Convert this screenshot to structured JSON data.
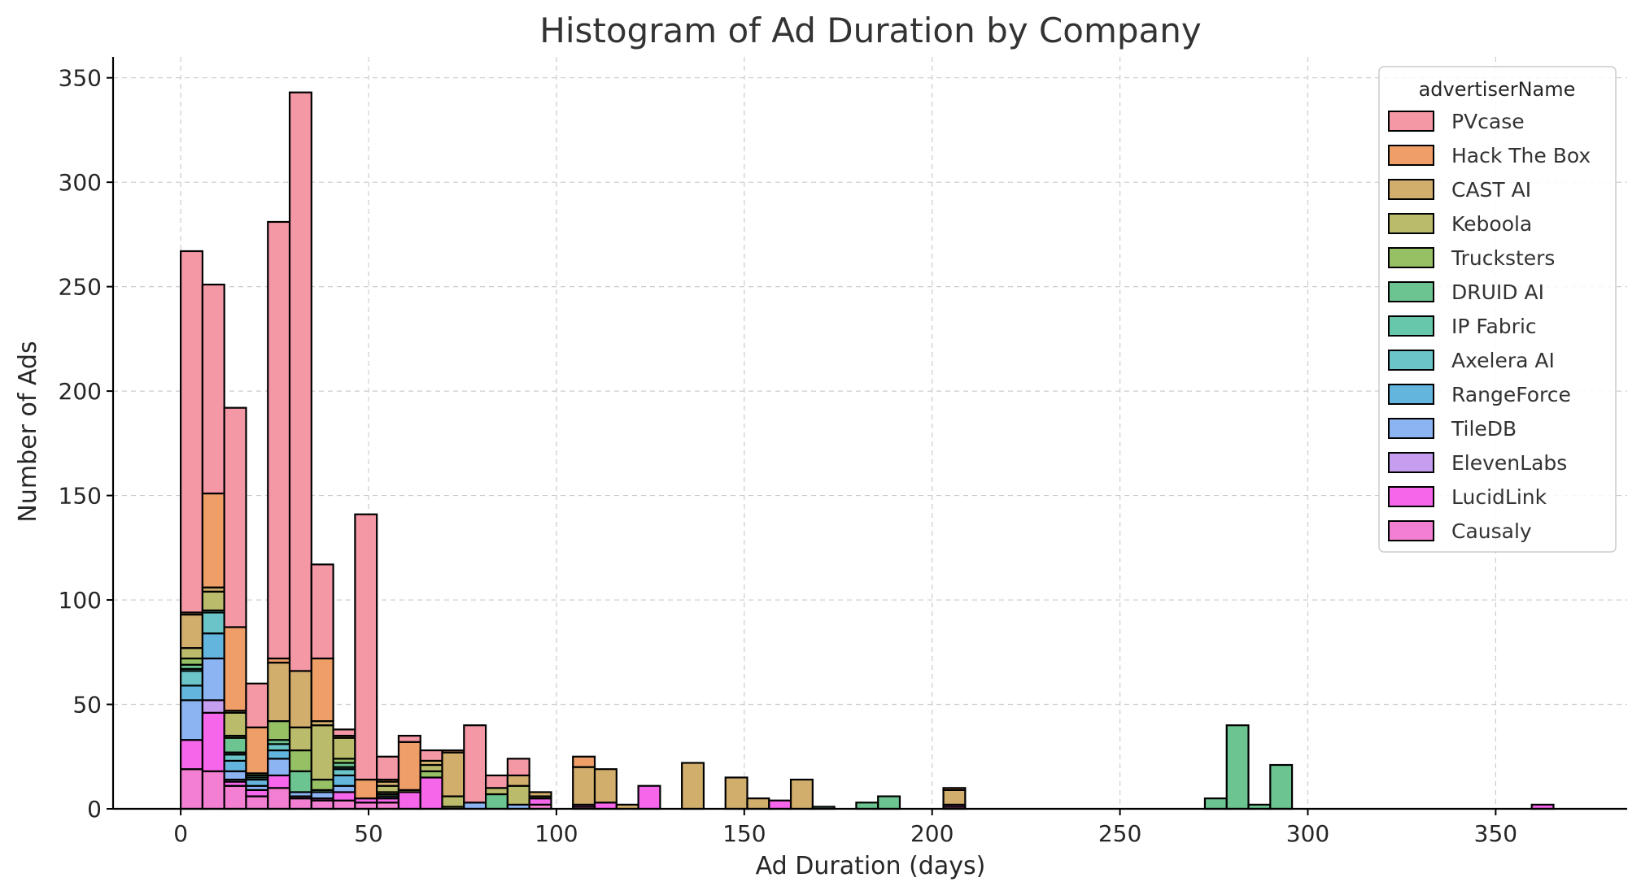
{
  "chart_data": {
    "type": "bar",
    "subtype": "stacked-histogram",
    "title": "Histogram of Ad Duration by Company",
    "xlabel": "Ad Duration (days)",
    "ylabel": "Number of Ads",
    "xlim": [
      -18,
      385
    ],
    "ylim": [
      0,
      360
    ],
    "xticks": [
      0,
      50,
      100,
      150,
      200,
      250,
      300,
      350
    ],
    "yticks": [
      0,
      50,
      100,
      150,
      200,
      250,
      300,
      350
    ],
    "grid": true,
    "legend_title": "advertiserName",
    "legend_position": "top-right",
    "bin_width": 5.8,
    "bins": [
      0,
      5.8,
      11.6,
      17.4,
      23.2,
      29.0,
      34.8,
      40.6,
      46.4,
      52.2,
      58.0,
      63.8,
      69.6,
      75.4,
      81.2,
      87.0,
      92.8,
      104.4,
      110.2,
      116.0,
      121.8,
      133.4,
      145.0,
      150.8,
      156.6,
      162.4,
      168.2,
      179.8,
      185.6,
      203.0,
      272.6,
      278.4,
      284.2,
      290.0,
      359.6
    ],
    "series": [
      {
        "name": "Causaly",
        "color": "#f27fd1",
        "values": [
          19,
          18,
          11,
          6,
          10,
          5,
          4,
          4,
          3,
          3,
          0,
          0,
          0,
          0,
          0,
          0,
          2,
          1,
          0,
          0,
          0,
          0,
          0,
          0,
          0,
          0,
          0,
          0,
          0,
          1,
          0,
          0,
          0,
          0,
          0
        ]
      },
      {
        "name": "LucidLink",
        "color": "#f566ea",
        "values": [
          14,
          28,
          2,
          3,
          6,
          1,
          1,
          4,
          2,
          2,
          8,
          15,
          0,
          0,
          0,
          0,
          3,
          1,
          3,
          0,
          11,
          0,
          0,
          0,
          4,
          0,
          0,
          0,
          0,
          1,
          0,
          0,
          0,
          0,
          2
        ]
      },
      {
        "name": "ElevenLabs",
        "color": "#c59ef0",
        "values": [
          0,
          6,
          1,
          0,
          0,
          0,
          0,
          0,
          0,
          0,
          0,
          0,
          0,
          0,
          0,
          0,
          0,
          0,
          0,
          0,
          0,
          0,
          0,
          0,
          0,
          0,
          0,
          0,
          0,
          0,
          0,
          0,
          0,
          0,
          0
        ]
      },
      {
        "name": "TileDB",
        "color": "#8cb3f2",
        "values": [
          19,
          20,
          4,
          2,
          8,
          2,
          3,
          3,
          0,
          1,
          0,
          0,
          0,
          3,
          0,
          2,
          0,
          0,
          0,
          0,
          0,
          0,
          0,
          0,
          0,
          0,
          0,
          0,
          0,
          0,
          0,
          0,
          0,
          0,
          0
        ]
      },
      {
        "name": "RangeForce",
        "color": "#64b5de",
        "values": [
          7,
          12,
          5,
          3,
          4,
          0,
          0,
          5,
          0,
          0,
          0,
          0,
          0,
          0,
          0,
          0,
          0,
          0,
          0,
          0,
          0,
          0,
          0,
          0,
          0,
          0,
          0,
          0,
          0,
          0,
          0,
          0,
          0,
          0,
          0
        ]
      },
      {
        "name": "Axelera AI",
        "color": "#6ac4c8",
        "values": [
          7,
          10,
          3,
          0,
          3,
          0,
          0,
          3,
          0,
          0,
          0,
          0,
          0,
          0,
          0,
          0,
          0,
          0,
          0,
          0,
          0,
          0,
          0,
          0,
          0,
          0,
          0,
          0,
          0,
          0,
          0,
          0,
          0,
          0,
          0
        ]
      },
      {
        "name": "IP Fabric",
        "color": "#67c7ab",
        "values": [
          1,
          1,
          1,
          1,
          0,
          0,
          0,
          1,
          0,
          0,
          0,
          0,
          0,
          0,
          0,
          0,
          0,
          0,
          0,
          0,
          0,
          0,
          0,
          0,
          0,
          0,
          0,
          0,
          0,
          0,
          0,
          0,
          0,
          0,
          0
        ]
      },
      {
        "name": "DRUID AI",
        "color": "#6cc490",
        "values": [
          2,
          0,
          7,
          1,
          2,
          10,
          1,
          2,
          0,
          1,
          0,
          0,
          0,
          0,
          7,
          0,
          0,
          0,
          0,
          0,
          0,
          0,
          0,
          0,
          0,
          0,
          1,
          3,
          6,
          0,
          5,
          40,
          2,
          21,
          0
        ]
      },
      {
        "name": "Trucksters",
        "color": "#96c064",
        "values": [
          3,
          0,
          1,
          1,
          9,
          10,
          5,
          2,
          0,
          1,
          1,
          3,
          1,
          0,
          0,
          0,
          0,
          0,
          0,
          0,
          0,
          0,
          0,
          0,
          0,
          0,
          0,
          0,
          0,
          0,
          0,
          0,
          0,
          0,
          0
        ]
      },
      {
        "name": "Keboola",
        "color": "#bbbb6c",
        "values": [
          5,
          9,
          11,
          0,
          0,
          11,
          26,
          10,
          0,
          3,
          0,
          3,
          5,
          0,
          3,
          9,
          1,
          0,
          0,
          0,
          0,
          0,
          0,
          0,
          0,
          0,
          0,
          0,
          0,
          0,
          0,
          0,
          0,
          0,
          0
        ]
      },
      {
        "name": "CAST AI",
        "color": "#d2ae6c",
        "values": [
          16,
          2,
          1,
          0,
          28,
          27,
          2,
          1,
          0,
          2,
          0,
          2,
          21,
          0,
          0,
          5,
          2,
          18,
          16,
          2,
          0,
          22,
          15,
          5,
          0,
          14,
          0,
          0,
          0,
          7,
          0,
          0,
          0,
          0,
          0
        ]
      },
      {
        "name": "Hack The Box",
        "color": "#ef9e68",
        "values": [
          1,
          45,
          40,
          22,
          2,
          0,
          30,
          0,
          9,
          1,
          23,
          0,
          1,
          0,
          0,
          0,
          0,
          5,
          0,
          0,
          0,
          0,
          0,
          0,
          0,
          0,
          0,
          0,
          0,
          1,
          0,
          0,
          0,
          0,
          0
        ]
      },
      {
        "name": "PVcase",
        "color": "#f598a6",
        "values": [
          173,
          100,
          105,
          21,
          209,
          277,
          45,
          3,
          127,
          11,
          3,
          5,
          0,
          37,
          6,
          8,
          0,
          0,
          0,
          0,
          0,
          0,
          0,
          0,
          0,
          0,
          0,
          0,
          0,
          0,
          0,
          0,
          0,
          0,
          0
        ]
      }
    ],
    "legend_order": [
      "PVcase",
      "Hack The Box",
      "CAST AI",
      "Keboola",
      "Trucksters",
      "DRUID AI",
      "IP Fabric",
      "Axelera AI",
      "RangeForce",
      "TileDB",
      "ElevenLabs",
      "LucidLink",
      "Causaly"
    ]
  }
}
